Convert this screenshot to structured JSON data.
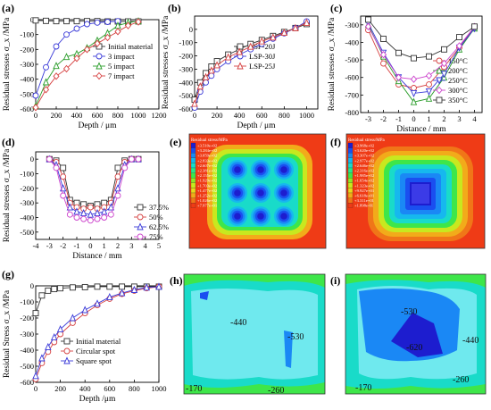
{
  "chart_data": [
    {
      "type": "line",
      "panel": "(a)",
      "xlabel": "Depth / μm",
      "ylabel": "Residual stresses σ_x /MPa",
      "xlim": [
        0,
        1200
      ],
      "ylim": [
        -600,
        0
      ],
      "xticks": [
        0,
        200,
        400,
        600,
        800,
        1000,
        1200
      ],
      "yticks": [
        -600,
        -500,
        -400,
        -300,
        -200,
        -100,
        0
      ],
      "legend": "right",
      "series": [
        {
          "name": "Initial material",
          "color": "#333333",
          "marker": "square",
          "x": [
            0,
            100,
            200,
            300,
            400,
            500,
            600,
            700,
            800,
            900,
            1000
          ],
          "y": [
            -5,
            -8,
            -10,
            -10,
            -10,
            -10,
            -10,
            -12,
            -12,
            -12,
            -12
          ]
        },
        {
          "name": "3 impact",
          "color": "#3a3ad8",
          "marker": "circle",
          "x": [
            0,
            100,
            200,
            300,
            400,
            500,
            600,
            700,
            800
          ],
          "y": [
            -510,
            -320,
            -180,
            -100,
            -60,
            -30,
            -20,
            -15,
            -10
          ]
        },
        {
          "name": "5 impact",
          "color": "#2a9d2a",
          "marker": "triangle",
          "x": [
            0,
            100,
            200,
            300,
            400,
            500,
            600,
            700,
            800,
            900,
            1000
          ],
          "y": [
            -580,
            -420,
            -310,
            -250,
            -230,
            -190,
            -140,
            -90,
            -40,
            -20,
            -10
          ]
        },
        {
          "name": "7 impact",
          "color": "#d64040",
          "marker": "diamond",
          "x": [
            0,
            100,
            200,
            300,
            400,
            500,
            600,
            700,
            800,
            900,
            1000
          ],
          "y": [
            -590,
            -470,
            -380,
            -330,
            -260,
            -200,
            -160,
            -120,
            -80,
            -40,
            -15
          ]
        }
      ]
    },
    {
      "type": "line",
      "panel": "(b)",
      "xlabel": "Depth / μm",
      "ylabel": "Residual stresses σ_x /MPa",
      "xlim": [
        0,
        1100
      ],
      "ylim": [
        -600,
        100
      ],
      "xticks": [
        0,
        200,
        400,
        600,
        800,
        1000
      ],
      "yticks": [
        -600,
        -500,
        -400,
        -300,
        -200,
        -100,
        0
      ],
      "legend": "right",
      "series": [
        {
          "name": "LSP-20J",
          "color": "#333333",
          "marker": "square",
          "x": [
            0,
            50,
            100,
            150,
            200,
            300,
            400,
            500,
            600,
            700,
            800,
            900,
            1000
          ],
          "y": [
            -530,
            -400,
            -330,
            -280,
            -240,
            -190,
            -150,
            -110,
            -80,
            -50,
            -20,
            10,
            40
          ]
        },
        {
          "name": "LSP-30J",
          "color": "#3a3ad8",
          "marker": "circle",
          "x": [
            0,
            50,
            100,
            150,
            200,
            300,
            400,
            500,
            600,
            700,
            800,
            900,
            1000
          ],
          "y": [
            -590,
            -470,
            -400,
            -350,
            -300,
            -240,
            -190,
            -150,
            -110,
            -70,
            -30,
            10,
            60
          ]
        },
        {
          "name": "LSP-25J",
          "color": "#d64040",
          "marker": "triangle",
          "x": [
            0,
            50,
            100,
            150,
            200,
            300,
            400,
            500,
            600,
            700,
            800,
            900,
            1000
          ],
          "y": [
            -560,
            -430,
            -360,
            -310,
            -270,
            -210,
            -170,
            -130,
            -90,
            -60,
            -25,
            10,
            50
          ]
        }
      ]
    },
    {
      "type": "line",
      "panel": "(c)",
      "xlabel": "Distance / mm",
      "ylabel": "Residual stresses σ_x /MPa",
      "xlim": [
        -3.5,
        4.5
      ],
      "ylim": [
        -800,
        -250
      ],
      "xticks": [
        -3,
        -2,
        -1,
        0,
        1,
        2,
        3,
        4
      ],
      "yticks": [
        -800,
        -700,
        -600,
        -500,
        -400,
        -300
      ],
      "legend": "right",
      "series": [
        {
          "name": "150°C",
          "color": "#d64040",
          "marker": "circle",
          "x": [
            -3,
            -2,
            -1,
            0,
            1,
            2,
            3,
            4
          ],
          "y": [
            -330,
            -520,
            -640,
            -660,
            -640,
            -540,
            -430,
            -310
          ]
        },
        {
          "name": "200°C",
          "color": "#2a9d2a",
          "marker": "triangle",
          "x": [
            -3,
            -2,
            -1,
            0,
            1,
            2,
            3,
            4
          ],
          "y": [
            -300,
            -480,
            -620,
            -740,
            -720,
            -600,
            -440,
            -320
          ]
        },
        {
          "name": "250°C",
          "color": "#3a3ad8",
          "marker": "triangle-down",
          "x": [
            -3,
            -2,
            -1,
            0,
            1,
            2,
            3,
            4
          ],
          "y": [
            -290,
            -460,
            -600,
            -690,
            -680,
            -580,
            -430,
            -320
          ]
        },
        {
          "name": "300°C",
          "color": "#cc44cc",
          "marker": "diamond",
          "x": [
            -3,
            -2,
            -1,
            0,
            1,
            2,
            3,
            4
          ],
          "y": [
            -310,
            -470,
            -600,
            -610,
            -590,
            -520,
            -420,
            -310
          ]
        },
        {
          "name": "350°C",
          "color": "#333333",
          "marker": "square",
          "x": [
            -3,
            -2,
            -1,
            0,
            1,
            2,
            3,
            4
          ],
          "y": [
            -270,
            -380,
            -460,
            -490,
            -480,
            -440,
            -370,
            -310
          ]
        }
      ]
    },
    {
      "type": "line",
      "panel": "(d)",
      "xlabel": "Distance / mm",
      "ylabel": "Residual stresses σ_x /MPa",
      "xlim": [
        -4,
        5
      ],
      "ylim": [
        -550,
        50
      ],
      "xticks": [
        -4,
        -3,
        -2,
        -1,
        0,
        1,
        2,
        3,
        4,
        5
      ],
      "yticks": [
        -500,
        -400,
        -300,
        -200,
        -100,
        0
      ],
      "legend": "right",
      "series": [
        {
          "name": "37.5%",
          "color": "#333333",
          "marker": "square",
          "x": [
            -3,
            -2.5,
            -2,
            -1.5,
            -1,
            -0.5,
            0,
            0.5,
            1,
            1.5,
            2,
            2.5,
            3,
            3.5
          ],
          "y": [
            0,
            -10,
            -60,
            -280,
            -300,
            -310,
            -320,
            -310,
            -300,
            -280,
            -60,
            -10,
            0,
            0
          ]
        },
        {
          "name": "50%",
          "color": "#d64040",
          "marker": "circle",
          "x": [
            -3,
            -2.5,
            -2,
            -1.5,
            -1,
            -0.5,
            0,
            0.5,
            1,
            1.5,
            2,
            2.5,
            3,
            3.5
          ],
          "y": [
            0,
            -20,
            -120,
            -300,
            -330,
            -340,
            -330,
            -340,
            -330,
            -300,
            -120,
            -20,
            0,
            0
          ]
        },
        {
          "name": "62.5%",
          "color": "#3a3ad8",
          "marker": "triangle",
          "x": [
            -3,
            -2.5,
            -2,
            -1.5,
            -1,
            -0.5,
            0,
            0.5,
            1,
            1.5,
            2,
            2.5,
            3,
            3.5
          ],
          "y": [
            0,
            -40,
            -200,
            -330,
            -360,
            -370,
            -380,
            -370,
            -360,
            -330,
            -200,
            -40,
            0,
            0
          ]
        },
        {
          "name": "75%",
          "color": "#cc44cc",
          "marker": "circle",
          "x": [
            -3,
            -2.5,
            -2,
            -1.5,
            -1,
            -0.5,
            0,
            0.5,
            1,
            1.5,
            2,
            2.5,
            3,
            3.5
          ],
          "y": [
            0,
            -60,
            -250,
            -380,
            -400,
            -410,
            -420,
            -410,
            -400,
            -380,
            -250,
            -60,
            0,
            0
          ]
        }
      ]
    },
    {
      "type": "line",
      "panel": "(g)",
      "xlabel": "Depth /μm",
      "ylabel": "Residual Stress σ_x /MPa",
      "xlim": [
        0,
        1000
      ],
      "ylim": [
        -600,
        0
      ],
      "xticks": [
        0,
        200,
        400,
        600,
        800,
        1000
      ],
      "yticks": [
        -600,
        -500,
        -400,
        -300,
        -200,
        -100,
        0
      ],
      "legend": "right",
      "series": [
        {
          "name": "Initial material",
          "color": "#333333",
          "marker": "square",
          "x": [
            0,
            50,
            100,
            150,
            200,
            300,
            400,
            500,
            600,
            700,
            800,
            900,
            1000
          ],
          "y": [
            -170,
            -60,
            -30,
            -20,
            -15,
            -10,
            -8,
            -5,
            -5,
            -5,
            -5,
            -5,
            -5
          ]
        },
        {
          "name": "Circular spot",
          "color": "#d64040",
          "marker": "circle",
          "x": [
            0,
            50,
            100,
            150,
            200,
            300,
            400,
            500,
            600,
            700,
            800,
            900,
            1000
          ],
          "y": [
            -580,
            -480,
            -410,
            -350,
            -300,
            -230,
            -170,
            -120,
            -80,
            -50,
            -30,
            -15,
            -5
          ]
        },
        {
          "name": "Square spot",
          "color": "#3a3ad8",
          "marker": "triangle",
          "x": [
            0,
            50,
            100,
            150,
            200,
            300,
            400,
            500,
            600,
            700,
            800,
            900,
            1000
          ],
          "y": [
            -560,
            -450,
            -380,
            -320,
            -270,
            -200,
            -150,
            -110,
            -70,
            -45,
            -25,
            -10,
            -5
          ]
        }
      ]
    }
  ],
  "panels": {
    "a": "(a)",
    "b": "(b)",
    "c": "(c)",
    "d": "(d)",
    "e": "(e)",
    "f": "(f)",
    "g": "(g)",
    "h": "(h)",
    "i": "(i)"
  },
  "contours": {
    "legend_title": "Residual stress/MPa",
    "e_legend": [
      "+3.510e+02",
      "+3.284e+02",
      "+3.059e+02",
      "+2.833e+02",
      "+2.607e+02",
      "+2.381e+02",
      "+2.155e+02",
      "+1.929e+02",
      "+1.703e+02",
      "+1.477e+02",
      "+1.252e+02",
      "+1.026e+02",
      "+7.977e+01"
    ],
    "f_legend": [
      "+3.968e+02",
      "+3.620e+02",
      "+3.307e+02",
      "+2.977e+02",
      "+2.646e+02",
      "+2.316e+02",
      "+1.985e+02",
      "+1.654e+02",
      "+1.323e+02",
      "+9.927e+01",
      "+6.618e+01",
      "+3.311e+01",
      "+1.898e-01"
    ],
    "legend_colors": [
      "#1d1dcf",
      "#1a4ff0",
      "#1a88f5",
      "#16b8ee",
      "#19dbc9",
      "#28e58b",
      "#3ee64a",
      "#8ee828",
      "#c8e81f",
      "#e7d81d",
      "#f2ab1a",
      "#f07618",
      "#ef3b16"
    ],
    "h_labels": [
      "-440",
      "-530",
      "-170",
      "-260"
    ],
    "i_labels": [
      "-530",
      "-620",
      "-440",
      "-170",
      "-260"
    ]
  }
}
